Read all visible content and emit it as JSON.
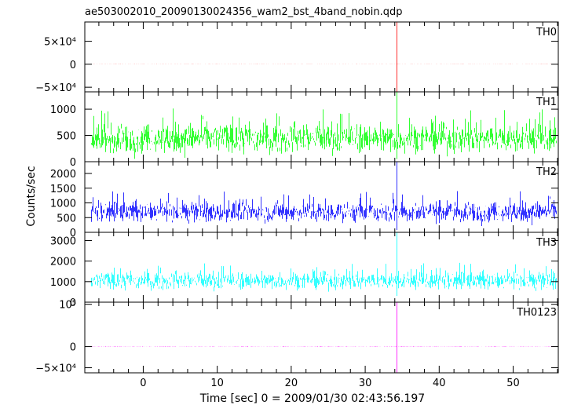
{
  "title": "ae503002010_20090130024356_wam2_bst_4band_nobin.qdp",
  "ylabel": "Counts/sec",
  "xlabel": "Time [sec] 0 = 2009/01/30 02:43:56.197",
  "chart_data": {
    "type": "line",
    "title": "ae503002010_20090130024356_wam2_bst_4band_nobin.qdp",
    "xlabel": "Time [sec] 0 = 2009/01/30 02:43:56.197",
    "ylabel": "Counts/sec",
    "x_range": [
      -7.9,
      56.1
    ],
    "x_ticks": [
      0,
      10,
      20,
      30,
      40,
      50
    ],
    "x_tick_labels": [
      "0",
      "10",
      "20",
      "30",
      "40",
      "50"
    ],
    "data_span": [
      -7.0,
      55.9
    ],
    "spike_time": 34.3,
    "panels": [
      {
        "name": "TH0",
        "color": "#ff0000",
        "ylim": [
          -60000,
          92000
        ],
        "y_ticks": [
          -50000,
          0,
          50000
        ],
        "y_tick_labels": [
          "−5×10⁴",
          "0",
          "5×10⁴"
        ],
        "baseline": 0,
        "noise": 150,
        "spike_peak": 92000,
        "spike_min": -60000
      },
      {
        "name": "TH1",
        "color": "#00ff00",
        "ylim": [
          0,
          1330
        ],
        "y_ticks": [
          0,
          500,
          1000
        ],
        "y_tick_labels": [
          "0",
          "500",
          "1000"
        ],
        "baseline": 450,
        "noise": 260,
        "spike_peak": 1330,
        "spike_min": 50
      },
      {
        "name": "TH2",
        "color": "#0000ff",
        "ylim": [
          0,
          2400
        ],
        "y_ticks": [
          0,
          500,
          1000,
          1500,
          2000
        ],
        "y_tick_labels": [
          "0",
          "500",
          "1000",
          "1500",
          "2000"
        ],
        "baseline": 700,
        "noise": 320,
        "spike_peak": 2400,
        "spike_min": 80
      },
      {
        "name": "TH3",
        "color": "#00ffff",
        "ylim": [
          0,
          3400
        ],
        "y_ticks": [
          0,
          1000,
          2000,
          3000
        ],
        "y_tick_labels": [
          "0",
          "1000",
          "2000",
          "3000"
        ],
        "baseline": 1050,
        "noise": 400,
        "spike_peak": 3400,
        "spike_min": 300
      },
      {
        "name": "TH0123",
        "color": "#ff00ff",
        "ylim": [
          -62000,
          105000
        ],
        "y_ticks": [
          -50000,
          0,
          100000
        ],
        "y_tick_labels": [
          "−5×10⁴",
          "0",
          "10⁵"
        ],
        "baseline": 0,
        "noise": 500,
        "spike_peak": 105000,
        "spike_min": -62000
      }
    ]
  }
}
